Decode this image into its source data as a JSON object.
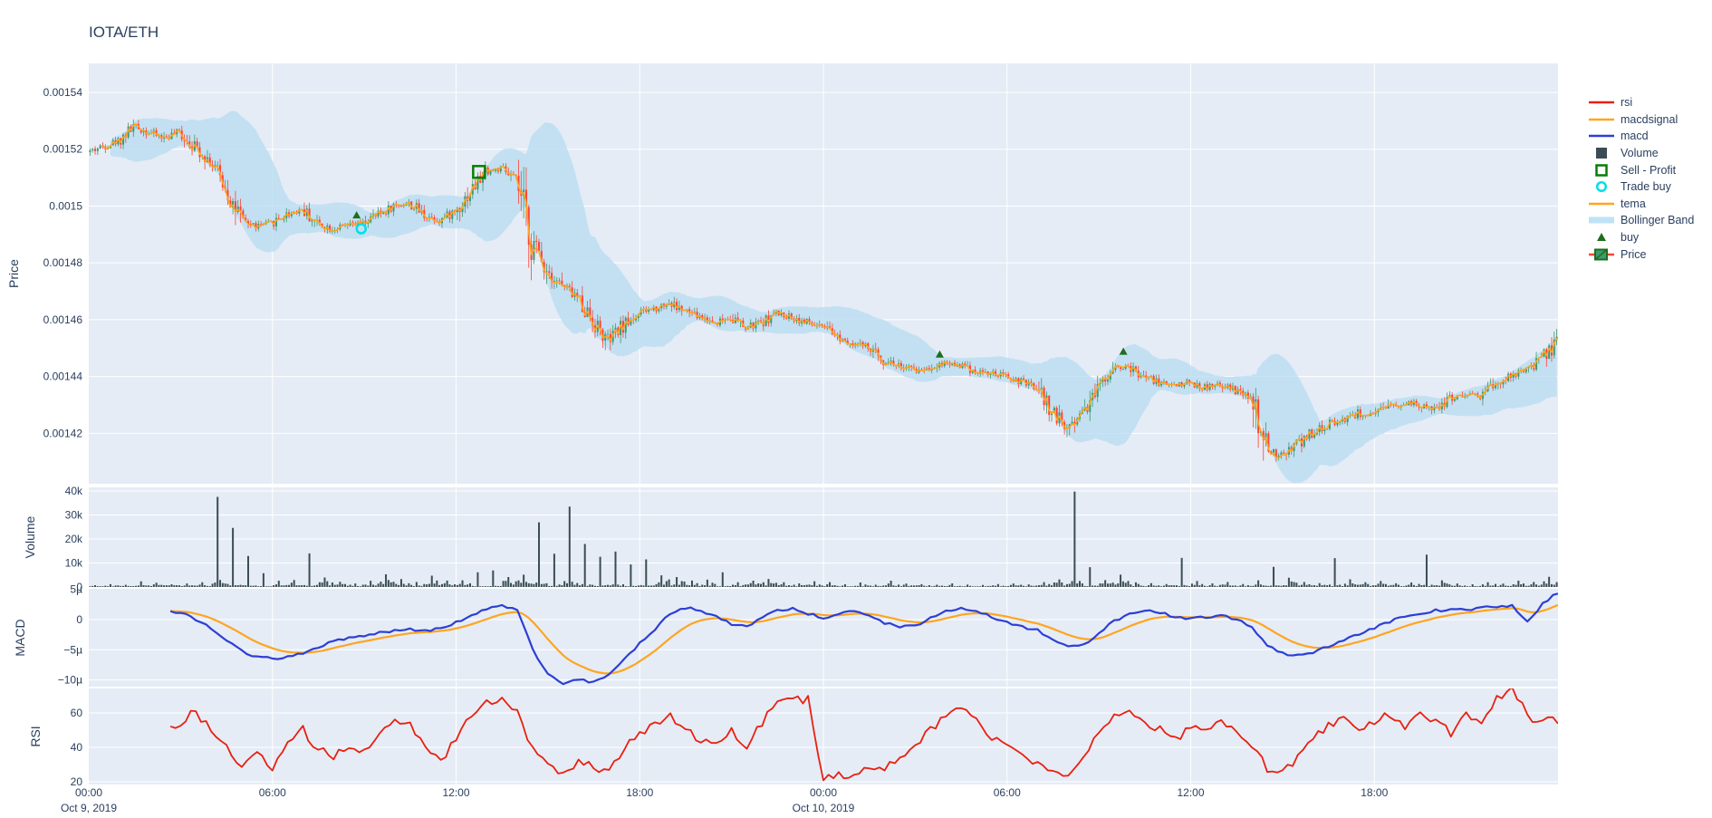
{
  "title": "IOTA/ETH",
  "colors": {
    "plot_bg": "#e5ecf6",
    "grid": "#ffffff",
    "text": "#2a3f5f",
    "candle_up": "#3D9970",
    "candle_down": "#FF4136",
    "rsi": "#e8200f",
    "macd": "#2d3fd4",
    "macdsignal": "#ffa51e",
    "tema": "#ffa51e",
    "volume": "#3b4d54",
    "bollinger": "#b9ddf1",
    "bollinger_legend": "#bfe2f5",
    "buy": "#1d6f1d",
    "sell_profit": "#077d07",
    "trade_buy": "#00dfe8"
  },
  "legend": {
    "items": [
      {
        "label": "rsi",
        "glyph": "line",
        "color": "#e8200f"
      },
      {
        "label": "macdsignal",
        "glyph": "line",
        "color": "#ffa51e"
      },
      {
        "label": "macd",
        "glyph": "line",
        "color": "#2d3fd4"
      },
      {
        "label": "Volume",
        "glyph": "square",
        "color": "#3b4d54"
      },
      {
        "label": "Sell - Profit",
        "glyph": "open-square",
        "color": "#077d07"
      },
      {
        "label": "Trade buy",
        "glyph": "open-circle",
        "color": "#00dfe8"
      },
      {
        "label": "tema",
        "glyph": "line",
        "color": "#ffa51e"
      },
      {
        "label": "Bollinger Band",
        "glyph": "thick-line",
        "color": "#bfe2f5"
      },
      {
        "label": "buy",
        "glyph": "triangle",
        "color": "#1d6f1d"
      },
      {
        "label": "Price",
        "glyph": "candle",
        "color": "#3D9970"
      }
    ]
  },
  "axes": {
    "price": {
      "title": "Price",
      "ticks": [
        "0.00154",
        "0.00152",
        "0.0015",
        "0.00148",
        "0.00146",
        "0.00144",
        "0.00142"
      ],
      "tick_values": [
        0.00154,
        0.00152,
        0.0015,
        0.00148,
        0.00146,
        0.00144,
        0.00142
      ]
    },
    "volume": {
      "title": "Volume",
      "ticks": [
        "40k",
        "30k",
        "20k",
        "10k",
        "0"
      ],
      "tick_values": [
        40000,
        30000,
        20000,
        10000,
        0
      ]
    },
    "macd": {
      "title": "MACD",
      "ticks": [
        "5µ",
        "0",
        "−5µ",
        "−10µ"
      ],
      "tick_values": [
        5,
        0,
        -5,
        -10
      ]
    },
    "rsi": {
      "title": "RSI",
      "ticks": [
        "60",
        "40",
        "20"
      ],
      "tick_values": [
        60,
        40,
        20
      ]
    },
    "x": {
      "ticks": [
        "00:00",
        "06:00",
        "12:00",
        "18:00",
        "00:00",
        "06:00",
        "12:00",
        "18:00"
      ],
      "tick_hours": [
        0,
        6,
        12,
        18,
        24,
        30,
        36,
        42
      ],
      "date_labels": [
        {
          "text": "Oct 9, 2019",
          "hour": 0
        },
        {
          "text": "Oct 10, 2019",
          "hour": 24
        }
      ]
    }
  },
  "chart_data": {
    "type": "candlestick+indicators",
    "x_unit": "hours since Oct 9, 2019 00:00",
    "x_range_hours": [
      0,
      48
    ],
    "anchor_step_hours": 0.5,
    "price_scale": 1e-06,
    "close_micro": [
      1519,
      1521,
      1523,
      1528,
      1526,
      1524,
      1526,
      1521,
      1516,
      1507,
      1495,
      1493,
      1494,
      1497,
      1499,
      1494,
      1492,
      1493,
      1494,
      1497,
      1500,
      1501,
      1497,
      1495,
      1498,
      1505,
      1512,
      1513,
      1509,
      1488,
      1478,
      1472,
      1468,
      1460,
      1452,
      1458,
      1462,
      1464,
      1466,
      1463,
      1461,
      1459,
      1461,
      1457,
      1459,
      1462,
      1461,
      1459,
      1457,
      1454,
      1452,
      1450,
      1446,
      1444,
      1442,
      1443,
      1445,
      1444,
      1442,
      1441,
      1440,
      1438,
      1436,
      1428,
      1422,
      1428,
      1436,
      1444,
      1443,
      1440,
      1438,
      1437,
      1438,
      1436,
      1437,
      1435,
      1432,
      1414,
      1412,
      1416,
      1420,
      1423,
      1425,
      1427,
      1426,
      1429,
      1431,
      1430,
      1428,
      1432,
      1434,
      1433,
      1437,
      1440,
      1442,
      1446,
      1452
    ],
    "volume": [
      800,
      1200,
      900,
      2500,
      1800,
      1200,
      1500,
      2000,
      40000,
      24000,
      12000,
      6000,
      2500,
      3000,
      13000,
      4000,
      2000,
      1500,
      2500,
      5000,
      3500,
      2000,
      5000,
      2500,
      3000,
      6000,
      7500,
      4000,
      5000,
      25000,
      15000,
      35000,
      18000,
      12000,
      16000,
      9000,
      11000,
      5000,
      4000,
      2500,
      3000,
      6000,
      2000,
      2500,
      3500,
      2000,
      1500,
      2500,
      2000,
      1200,
      1800,
      1000,
      2500,
      1500,
      1200,
      900,
      1500,
      1000,
      800,
      1200,
      1500,
      1000,
      2000,
      3000,
      38000,
      8000,
      3000,
      5000,
      2000,
      1500,
      1200,
      12000,
      2500,
      1500,
      2000,
      1200,
      3000,
      9000,
      4000,
      2000,
      1500,
      13000,
      3000,
      2000,
      2500,
      1500,
      2000,
      14000,
      3000,
      1500,
      1200,
      2000,
      1500,
      2500,
      2000,
      4000,
      3000
    ],
    "indicator_t0_hours": 2.5,
    "macd_micro": [
      1.5,
      1.2,
      0,
      -1.5,
      -3.5,
      -5.2,
      -6.2,
      -6.5,
      -6.2,
      -5.5,
      -4.5,
      -3.5,
      -3,
      -2.6,
      -2.2,
      -1.8,
      -1.6,
      -1.8,
      -1.5,
      -0.5,
      0.8,
      1.8,
      2.4,
      1.5,
      -5,
      -9,
      -10.5,
      -10,
      -10.4,
      -9,
      -6.5,
      -4,
      -1.5,
      1,
      2,
      1.5,
      0.5,
      -0.8,
      -1.2,
      0.3,
      1.5,
      1.8,
      1,
      0.2,
      1,
      1.5,
      0.5,
      -0.5,
      -1.2,
      -1,
      0.3,
      1.3,
      1.8,
      1.4,
      0.5,
      -0.5,
      -1.2,
      -1.8,
      -3.2,
      -4.6,
      -4.2,
      -2.2,
      -0.2,
      1,
      1.6,
      1.1,
      0.5,
      0.1,
      0.5,
      0.6,
      0.1,
      -1.2,
      -4.2,
      -5.6,
      -6,
      -5.4,
      -4.4,
      -3.4,
      -2.4,
      -1.4,
      -0.4,
      0.6,
      1.1,
      1.5,
      1.6,
      1.6,
      2,
      2.1,
      2.4,
      -0.4,
      2.6,
      4.5
    ],
    "rsi": [
      50,
      55,
      62,
      48,
      40,
      30,
      35,
      28,
      42,
      50,
      38,
      35,
      42,
      38,
      48,
      55,
      52,
      40,
      32,
      45,
      58,
      65,
      68,
      60,
      38,
      30,
      26,
      32,
      28,
      25,
      40,
      48,
      52,
      58,
      50,
      45,
      42,
      50,
      40,
      55,
      68,
      68,
      68,
      22,
      24,
      22,
      28,
      26,
      36,
      40,
      50,
      60,
      65,
      55,
      45,
      40,
      35,
      30,
      25,
      22,
      35,
      48,
      58,
      62,
      55,
      50,
      45,
      52,
      48,
      55,
      50,
      40,
      28,
      25,
      35,
      45,
      52,
      58,
      50,
      55,
      60,
      52,
      62,
      55,
      48,
      58,
      52,
      68,
      74,
      58,
      55,
      56
    ],
    "markers": {
      "buy": [
        {
          "t": 8.75,
          "price_micro": 1495
        },
        {
          "t": 27.8,
          "price_micro": 1446
        },
        {
          "t": 33.8,
          "price_micro": 1447
        }
      ],
      "trade_buy": [
        {
          "t": 8.9,
          "price_micro": 1492
        }
      ],
      "sell_profit": [
        {
          "t": 12.75,
          "price_micro": 1512
        }
      ]
    }
  }
}
